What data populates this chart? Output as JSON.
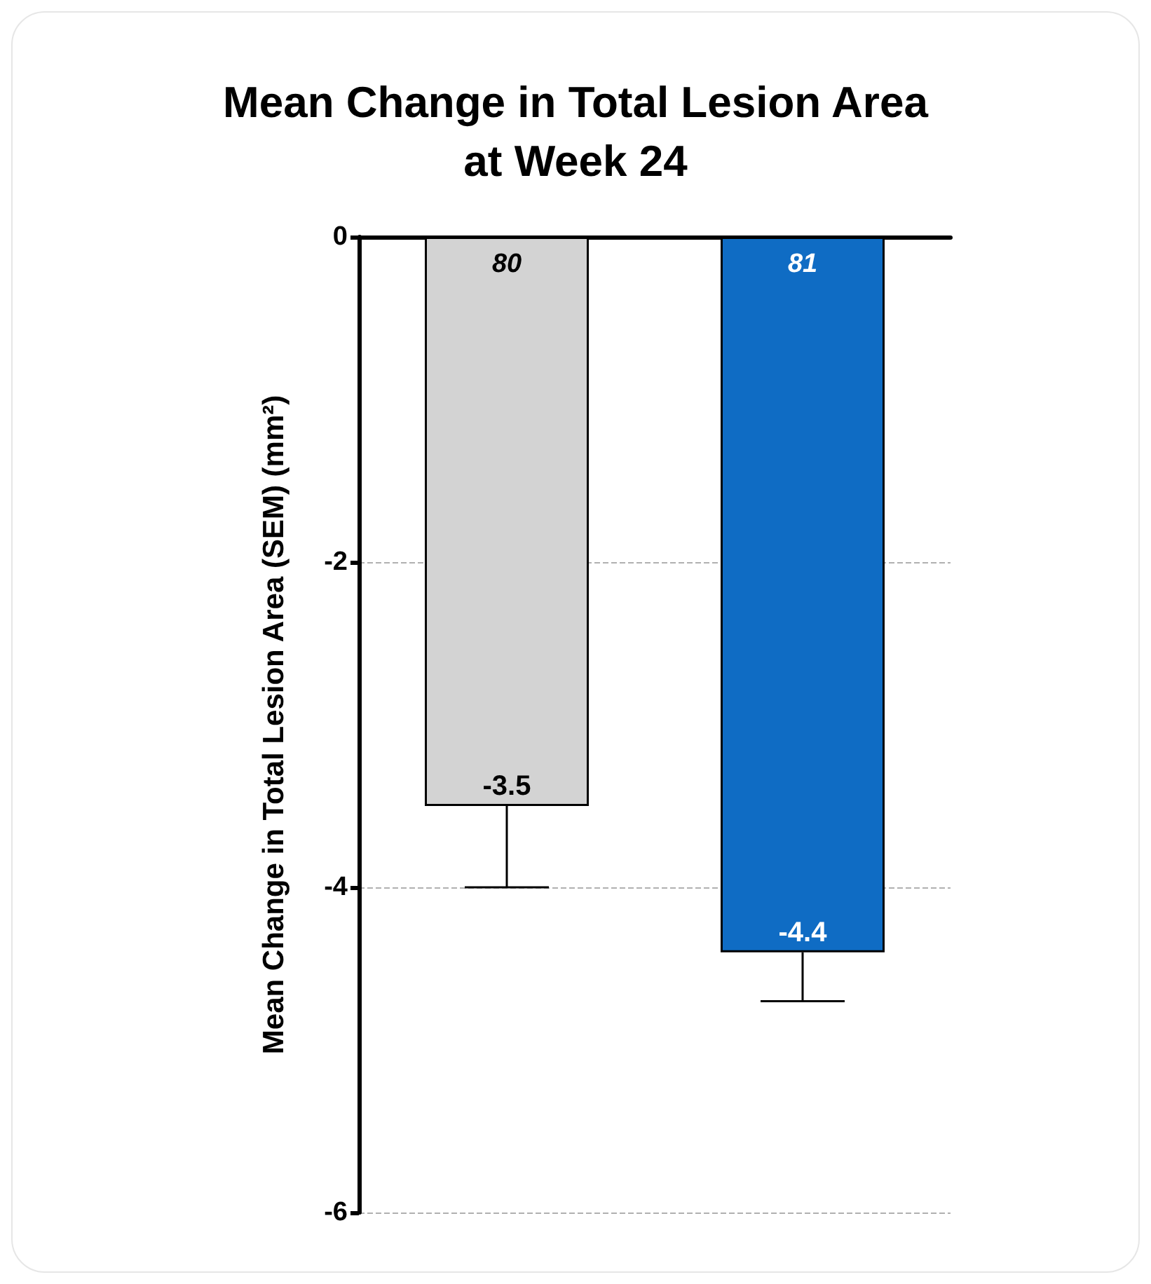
{
  "chart_data": {
    "type": "bar",
    "title": "Mean Change in Total Lesion Area\nat Week 24",
    "ylabel": "Mean Change in Total Lesion Area (SEM) (mm²)",
    "categories": [
      null,
      null
    ],
    "values": [
      -3.5,
      -4.4
    ],
    "colors": [
      "#d3d3d3",
      "#0f6cc4"
    ],
    "errors": [
      [
        -4.0,
        -3.5
      ],
      [
        -4.7,
        -4.4
      ]
    ],
    "annotations": [
      "80",
      "81"
    ],
    "data_labels": true,
    "ylim": [
      -6,
      0
    ],
    "yticks": [
      0,
      -2,
      -4,
      -6
    ],
    "grid": "y",
    "tick_labels": "y"
  }
}
